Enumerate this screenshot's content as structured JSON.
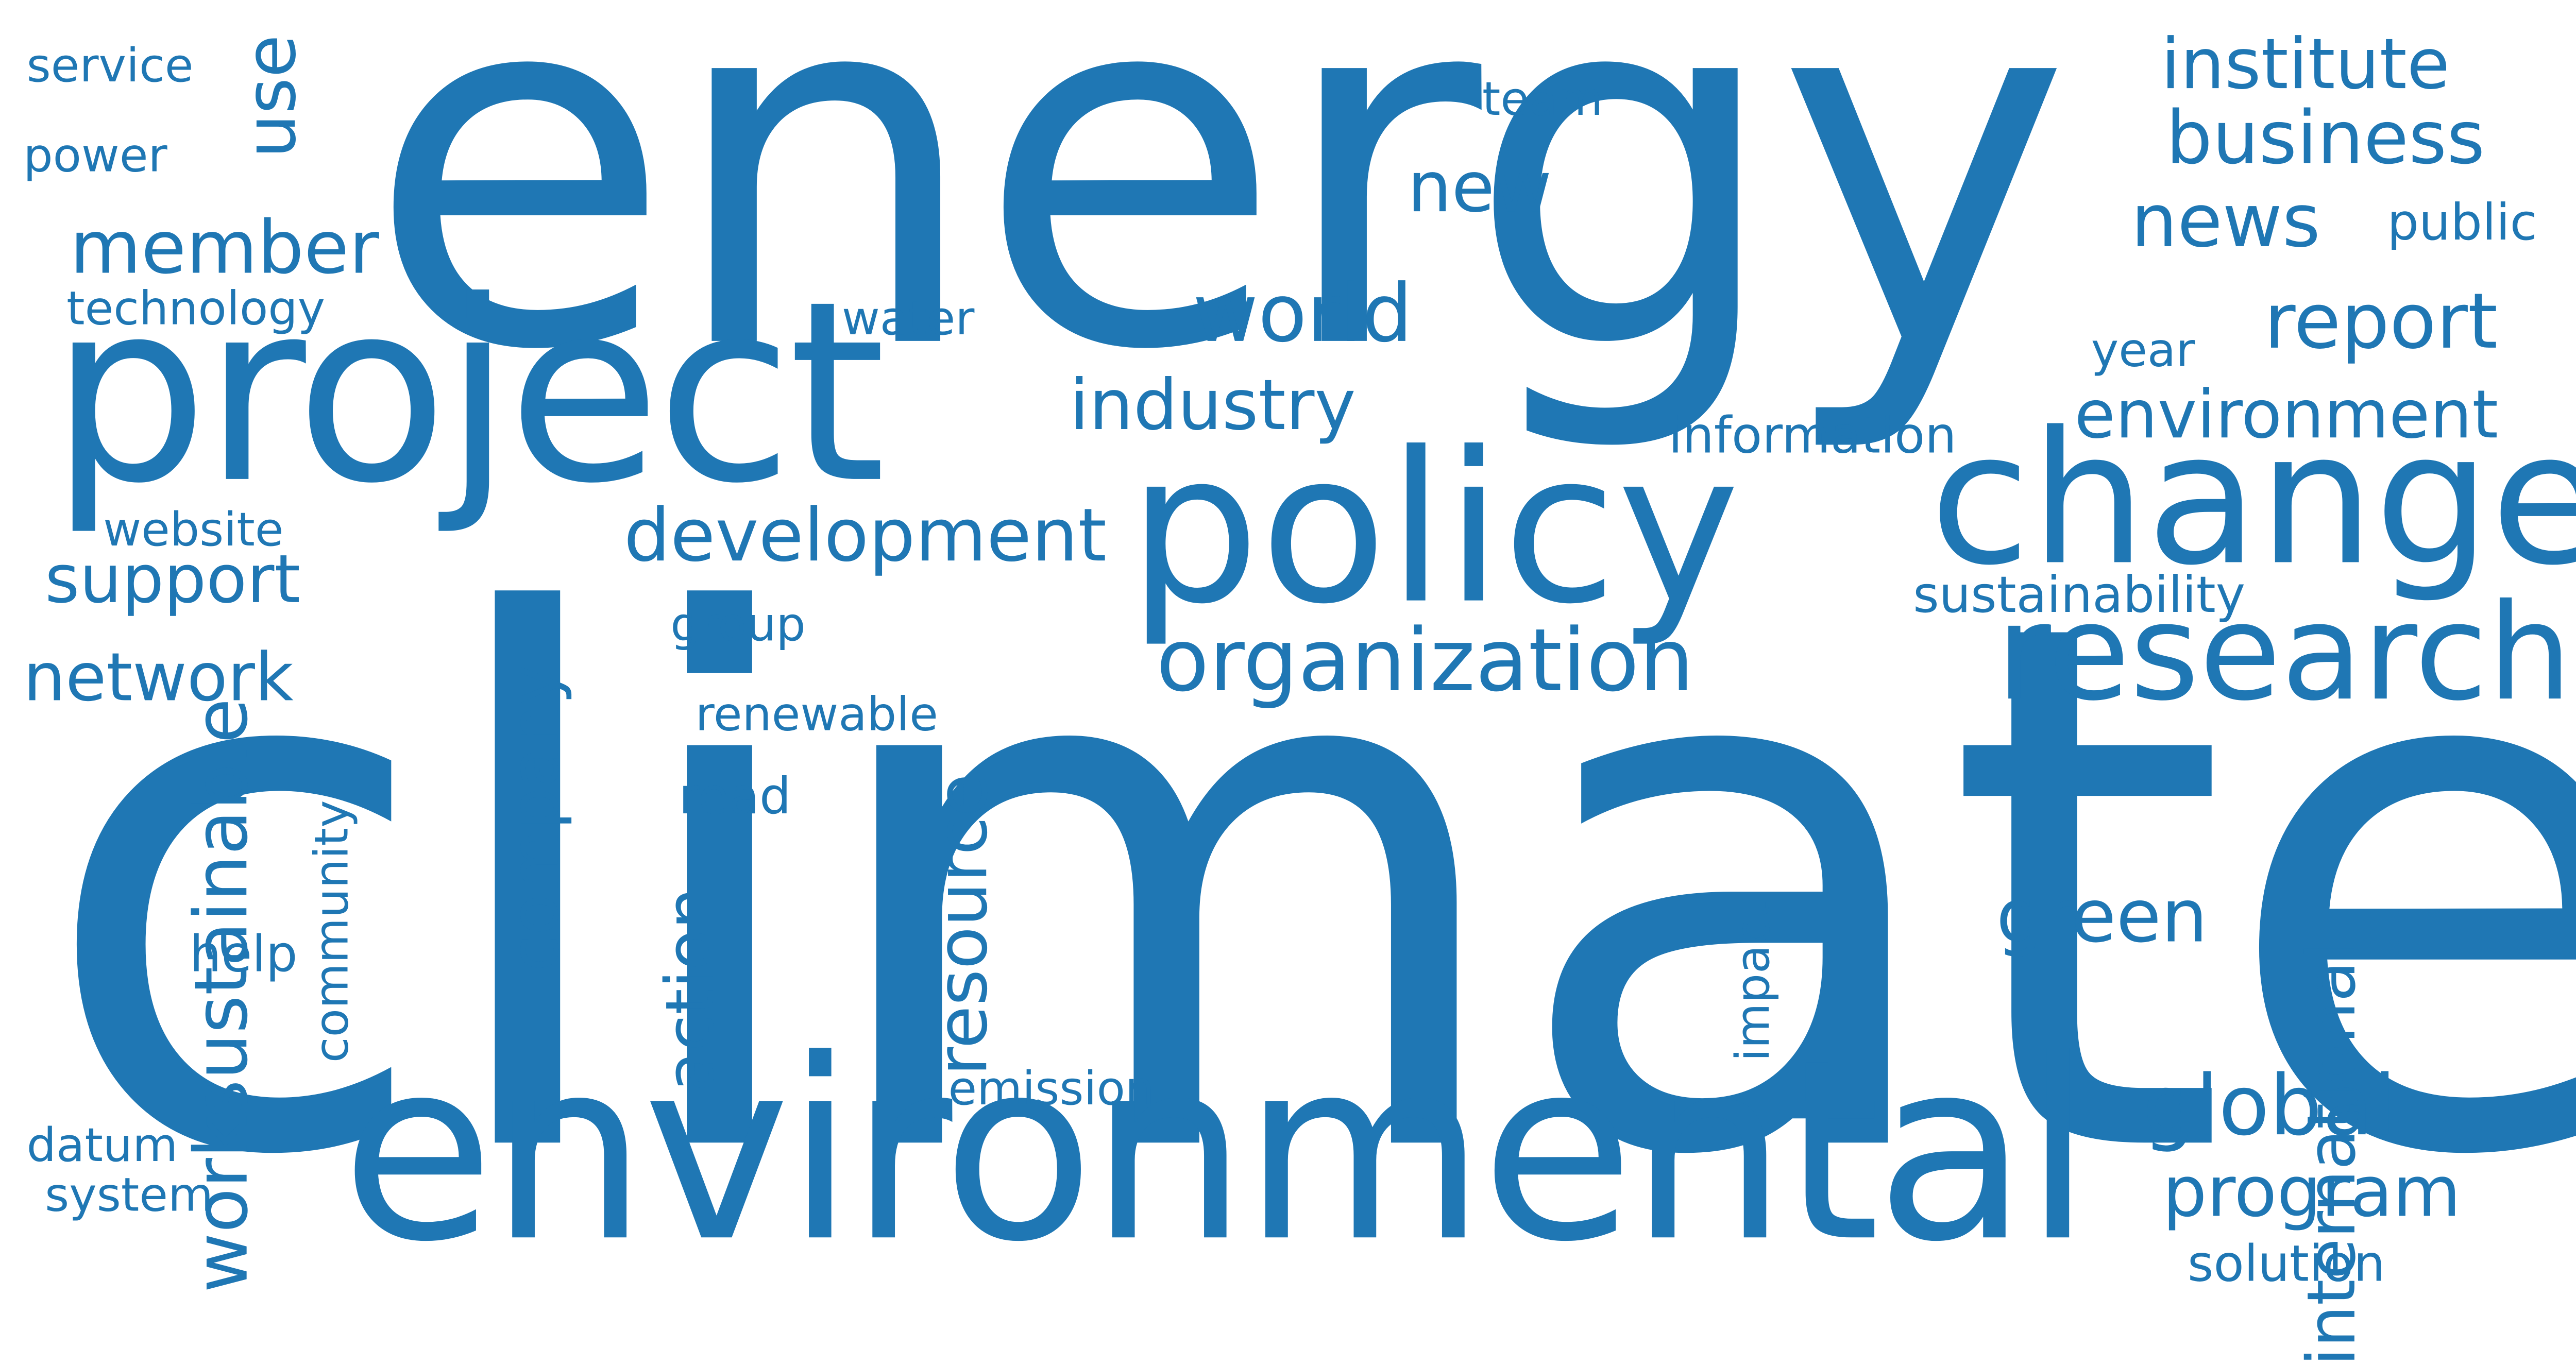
{
  "words": {
    "climate": "climate",
    "energy": "energy",
    "project": "project",
    "environmental": "environmental",
    "policy": "policy",
    "change": "change",
    "research": "research",
    "organization": "organization",
    "world": "world",
    "industry": "industry",
    "development": "development",
    "member": "member",
    "support": "support",
    "network": "network",
    "new": "new",
    "institute": "institute",
    "business": "business",
    "news": "news",
    "report": "report",
    "environment": "environment",
    "global": "global",
    "program": "program",
    "green": "green",
    "public": "public",
    "year": "year",
    "information": "information",
    "sustainability": "sustainability",
    "solution": "solution",
    "team": "team",
    "water": "water",
    "technology": "technology",
    "service": "service",
    "power": "power",
    "website": "website",
    "group": "group",
    "renewable": "renewable",
    "read": "read",
    "help": "help",
    "emission": "emission",
    "datum": "datum",
    "system": "system",
    "use": "use",
    "sustainable": "sustainable",
    "company": "company",
    "community": "community",
    "work": "work",
    "action": "action",
    "resource": "resource",
    "impact": "impact",
    "international": "international"
  },
  "colors": {
    "word": "#1f77b4",
    "background": "#ffffff"
  }
}
